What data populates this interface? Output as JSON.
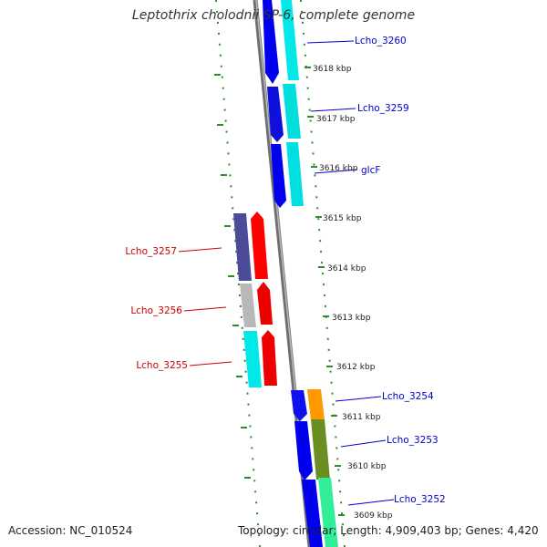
{
  "title": "Leptothrix cholodnii SP-6, complete genome",
  "footer": {
    "accession": "Accession: NC_010524",
    "summary": "Topology: circular; Length: 4,909,403 bp; Genes: 4,420"
  },
  "colors": {
    "forward_label": "#0000cc",
    "reverse_label": "#cc0000",
    "backbone": "#808080",
    "ruler": "#2e8b2e",
    "gene_blue": "#0000ee",
    "gene_cyan": "#00e8e8",
    "gene_red": "#ff0000",
    "gene_purple": "#4b4b9a",
    "gene_gray": "#b8b8b8",
    "gene_orange": "#ff9900",
    "gene_olive": "#6b8e23",
    "gene_green": "#33ee99"
  },
  "ticks": [
    "3618 kbp",
    "3617 kbp",
    "3616 kbp",
    "3615 kbp",
    "3614 kbp",
    "3613 kbp",
    "3612 kbp",
    "3611 kbp",
    "3610 kbp",
    "3609 kbp"
  ],
  "forward_labels": [
    "Lcho_3260",
    "Lcho_3259",
    "glcF",
    "Lcho_3254",
    "Lcho_3253",
    "Lcho_3252"
  ],
  "reverse_labels": [
    "Lcho_3257",
    "Lcho_3256",
    "Lcho_3255"
  ]
}
